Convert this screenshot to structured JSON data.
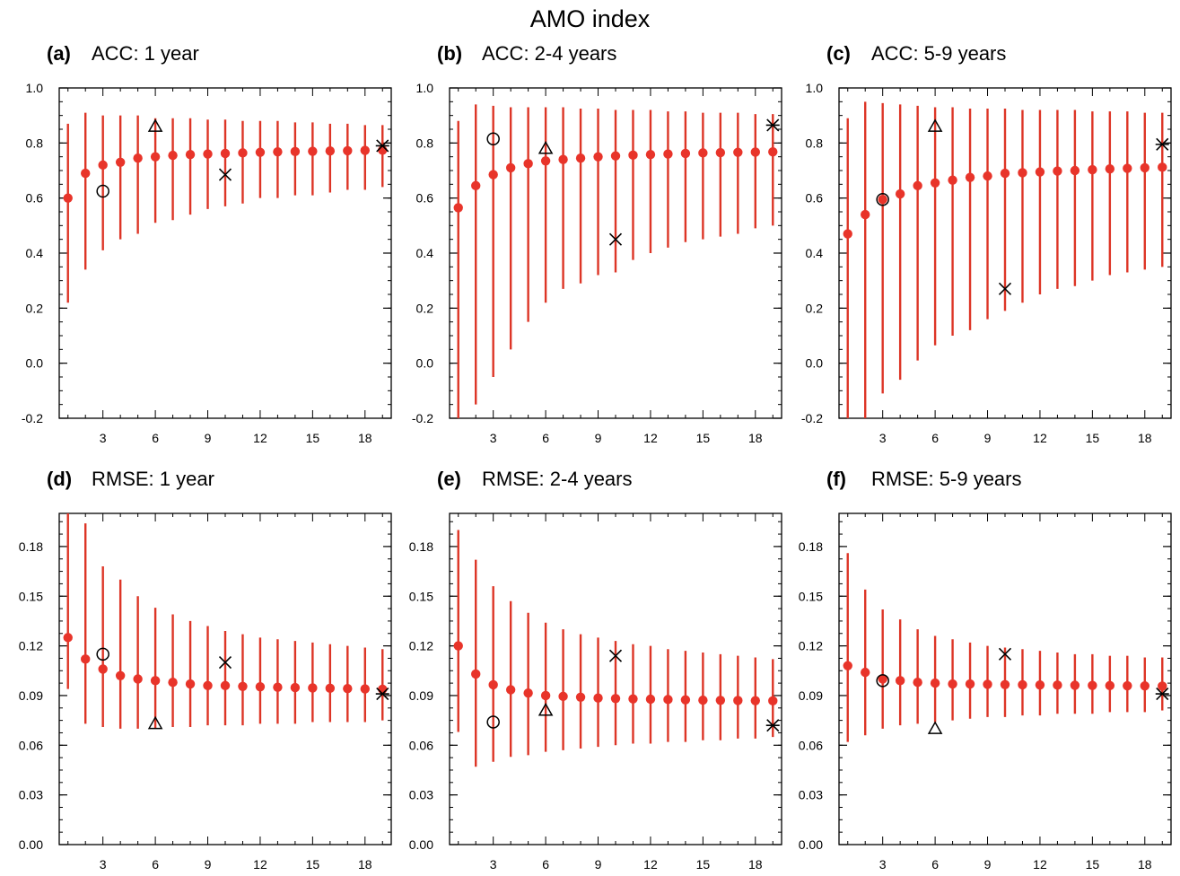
{
  "figure": {
    "title": "AMO index"
  },
  "style": {
    "dot_color": "#e8342a",
    "bar_color": "#dd3526",
    "marker_color": "#000000"
  },
  "chart_data": [
    {
      "type": "scatter",
      "letter": "(a)",
      "title": "ACC: 1 year",
      "xlim": [
        0.5,
        19.5
      ],
      "xticks": [
        3,
        6,
        9,
        12,
        15,
        18
      ],
      "ylim": [
        -0.2,
        1.0
      ],
      "yticks": [
        -0.2,
        0.0,
        0.2,
        0.4,
        0.6,
        0.8,
        1.0
      ],
      "ytick_labels": [
        "-0.2",
        "0.0",
        "0.2",
        "0.4",
        "0.6",
        "0.8",
        "1.0"
      ],
      "grid": false,
      "x": [
        1,
        2,
        3,
        4,
        5,
        6,
        7,
        8,
        9,
        10,
        11,
        12,
        13,
        14,
        15,
        16,
        17,
        18,
        19
      ],
      "mean": [
        0.6,
        0.69,
        0.72,
        0.73,
        0.745,
        0.75,
        0.755,
        0.758,
        0.76,
        0.762,
        0.764,
        0.766,
        0.768,
        0.769,
        0.77,
        0.771,
        0.772,
        0.773,
        0.774
      ],
      "low": [
        0.22,
        0.34,
        0.41,
        0.45,
        0.47,
        0.51,
        0.52,
        0.54,
        0.56,
        0.57,
        0.58,
        0.6,
        0.6,
        0.61,
        0.61,
        0.62,
        0.63,
        0.63,
        0.64
      ],
      "high": [
        0.87,
        0.91,
        0.9,
        0.9,
        0.9,
        0.89,
        0.89,
        0.89,
        0.885,
        0.885,
        0.88,
        0.88,
        0.88,
        0.875,
        0.875,
        0.87,
        0.87,
        0.865,
        0.865
      ],
      "markers": [
        {
          "symbol": "circle",
          "x": 3,
          "y": 0.625
        },
        {
          "symbol": "triangle",
          "x": 6,
          "y": 0.86
        },
        {
          "symbol": "cross",
          "x": 10,
          "y": 0.685
        },
        {
          "symbol": "asterisk",
          "x": 19,
          "y": 0.79
        }
      ]
    },
    {
      "type": "scatter",
      "letter": "(b)",
      "title": "ACC: 2-4 years",
      "xlim": [
        0.5,
        19.5
      ],
      "xticks": [
        3,
        6,
        9,
        12,
        15,
        18
      ],
      "ylim": [
        -0.2,
        1.0
      ],
      "yticks": [
        -0.2,
        0.0,
        0.2,
        0.4,
        0.6,
        0.8,
        1.0
      ],
      "ytick_labels": [
        "-0.2",
        "0.0",
        "0.2",
        "0.4",
        "0.6",
        "0.8",
        "1.0"
      ],
      "grid": false,
      "x": [
        1,
        2,
        3,
        4,
        5,
        6,
        7,
        8,
        9,
        10,
        11,
        12,
        13,
        14,
        15,
        16,
        17,
        18,
        19
      ],
      "mean": [
        0.565,
        0.645,
        0.685,
        0.71,
        0.725,
        0.735,
        0.74,
        0.745,
        0.75,
        0.753,
        0.756,
        0.758,
        0.76,
        0.762,
        0.764,
        0.765,
        0.766,
        0.767,
        0.768
      ],
      "low": [
        -0.2,
        -0.15,
        -0.05,
        0.05,
        0.15,
        0.22,
        0.27,
        0.29,
        0.32,
        0.33,
        0.375,
        0.4,
        0.42,
        0.44,
        0.45,
        0.46,
        0.47,
        0.49,
        0.5
      ],
      "high": [
        0.88,
        0.94,
        0.935,
        0.93,
        0.93,
        0.93,
        0.93,
        0.925,
        0.925,
        0.92,
        0.92,
        0.92,
        0.915,
        0.915,
        0.91,
        0.91,
        0.91,
        0.905,
        0.905
      ],
      "markers": [
        {
          "symbol": "circle",
          "x": 3,
          "y": 0.815
        },
        {
          "symbol": "triangle",
          "x": 6,
          "y": 0.78
        },
        {
          "symbol": "cross",
          "x": 10,
          "y": 0.45
        },
        {
          "symbol": "asterisk",
          "x": 19,
          "y": 0.865
        }
      ]
    },
    {
      "type": "scatter",
      "letter": "(c)",
      "title": "ACC: 5-9 years",
      "xlim": [
        0.5,
        19.5
      ],
      "xticks": [
        3,
        6,
        9,
        12,
        15,
        18
      ],
      "ylim": [
        -0.2,
        1.0
      ],
      "yticks": [
        -0.2,
        0.0,
        0.2,
        0.4,
        0.6,
        0.8,
        1.0
      ],
      "ytick_labels": [
        "-0.2",
        "0.0",
        "0.2",
        "0.4",
        "0.6",
        "0.8",
        "1.0"
      ],
      "grid": false,
      "x": [
        1,
        2,
        3,
        4,
        5,
        6,
        7,
        8,
        9,
        10,
        11,
        12,
        13,
        14,
        15,
        16,
        17,
        18,
        19
      ],
      "mean": [
        0.47,
        0.54,
        0.595,
        0.615,
        0.645,
        0.655,
        0.665,
        0.675,
        0.68,
        0.69,
        0.692,
        0.695,
        0.698,
        0.7,
        0.703,
        0.706,
        0.708,
        0.71,
        0.712
      ],
      "low": [
        -0.2,
        -0.2,
        -0.11,
        -0.06,
        0.01,
        0.065,
        0.1,
        0.12,
        0.16,
        0.19,
        0.22,
        0.25,
        0.27,
        0.28,
        0.3,
        0.32,
        0.33,
        0.34,
        0.35
      ],
      "high": [
        0.89,
        0.95,
        0.945,
        0.94,
        0.935,
        0.93,
        0.93,
        0.925,
        0.925,
        0.925,
        0.92,
        0.92,
        0.92,
        0.92,
        0.915,
        0.915,
        0.915,
        0.91,
        0.91
      ],
      "markers": [
        {
          "symbol": "circle",
          "x": 3,
          "y": 0.595
        },
        {
          "symbol": "triangle",
          "x": 6,
          "y": 0.86
        },
        {
          "symbol": "cross",
          "x": 10,
          "y": 0.27
        },
        {
          "symbol": "asterisk",
          "x": 19,
          "y": 0.795
        }
      ]
    },
    {
      "type": "scatter",
      "letter": "(d)",
      "title": "RMSE: 1 year",
      "xlim": [
        0.5,
        19.5
      ],
      "xticks": [
        3,
        6,
        9,
        12,
        15,
        18
      ],
      "ylim": [
        0.0,
        0.2
      ],
      "yticks": [
        0.0,
        0.03,
        0.06,
        0.09,
        0.12,
        0.15,
        0.18
      ],
      "ytick_labels": [
        "0.00",
        "0.03",
        "0.06",
        "0.09",
        "0.12",
        "0.15",
        "0.18"
      ],
      "grid": false,
      "x": [
        1,
        2,
        3,
        4,
        5,
        6,
        7,
        8,
        9,
        10,
        11,
        12,
        13,
        14,
        15,
        16,
        17,
        18,
        19
      ],
      "mean": [
        0.125,
        0.112,
        0.106,
        0.102,
        0.1,
        0.099,
        0.098,
        0.097,
        0.096,
        0.096,
        0.0955,
        0.0953,
        0.095,
        0.0948,
        0.0946,
        0.0944,
        0.0942,
        0.094,
        0.0938
      ],
      "low": [
        0.094,
        0.073,
        0.071,
        0.07,
        0.07,
        0.07,
        0.071,
        0.071,
        0.072,
        0.072,
        0.072,
        0.073,
        0.073,
        0.073,
        0.074,
        0.074,
        0.074,
        0.074,
        0.075
      ],
      "high": [
        0.2,
        0.194,
        0.168,
        0.16,
        0.15,
        0.143,
        0.139,
        0.135,
        0.132,
        0.129,
        0.127,
        0.125,
        0.124,
        0.123,
        0.122,
        0.121,
        0.12,
        0.119,
        0.118
      ],
      "markers": [
        {
          "symbol": "circle",
          "x": 3,
          "y": 0.115
        },
        {
          "symbol": "triangle",
          "x": 6,
          "y": 0.073
        },
        {
          "symbol": "cross",
          "x": 10,
          "y": 0.11
        },
        {
          "symbol": "asterisk",
          "x": 19,
          "y": 0.091
        }
      ]
    },
    {
      "type": "scatter",
      "letter": "(e)",
      "title": "RMSE: 2-4 years",
      "xlim": [
        0.5,
        19.5
      ],
      "xticks": [
        3,
        6,
        9,
        12,
        15,
        18
      ],
      "ylim": [
        0.0,
        0.2
      ],
      "yticks": [
        0.0,
        0.03,
        0.06,
        0.09,
        0.12,
        0.15,
        0.18
      ],
      "ytick_labels": [
        "0.00",
        "0.03",
        "0.06",
        "0.09",
        "0.12",
        "0.15",
        "0.18"
      ],
      "grid": false,
      "x": [
        1,
        2,
        3,
        4,
        5,
        6,
        7,
        8,
        9,
        10,
        11,
        12,
        13,
        14,
        15,
        16,
        17,
        18,
        19
      ],
      "mean": [
        0.12,
        0.103,
        0.0965,
        0.0935,
        0.0915,
        0.09,
        0.0895,
        0.089,
        0.0885,
        0.0882,
        0.088,
        0.0878,
        0.0876,
        0.0874,
        0.0872,
        0.0871,
        0.087,
        0.0869,
        0.0868
      ],
      "low": [
        0.068,
        0.047,
        0.05,
        0.053,
        0.054,
        0.056,
        0.057,
        0.058,
        0.059,
        0.06,
        0.061,
        0.061,
        0.062,
        0.062,
        0.063,
        0.063,
        0.064,
        0.064,
        0.065
      ],
      "high": [
        0.19,
        0.172,
        0.156,
        0.147,
        0.14,
        0.134,
        0.13,
        0.127,
        0.125,
        0.123,
        0.121,
        0.12,
        0.118,
        0.117,
        0.116,
        0.115,
        0.114,
        0.113,
        0.112
      ],
      "markers": [
        {
          "symbol": "circle",
          "x": 3,
          "y": 0.074
        },
        {
          "symbol": "triangle",
          "x": 6,
          "y": 0.081
        },
        {
          "symbol": "cross",
          "x": 10,
          "y": 0.114
        },
        {
          "symbol": "asterisk",
          "x": 19,
          "y": 0.072
        }
      ]
    },
    {
      "type": "scatter",
      "letter": "(f)",
      "title": "RMSE: 5-9 years",
      "xlim": [
        0.5,
        19.5
      ],
      "xticks": [
        3,
        6,
        9,
        12,
        15,
        18
      ],
      "ylim": [
        0.0,
        0.2
      ],
      "yticks": [
        0.0,
        0.03,
        0.06,
        0.09,
        0.12,
        0.15,
        0.18
      ],
      "ytick_labels": [
        "0.00",
        "0.03",
        "0.06",
        "0.09",
        "0.12",
        "0.15",
        "0.18"
      ],
      "grid": false,
      "x": [
        1,
        2,
        3,
        4,
        5,
        6,
        7,
        8,
        9,
        10,
        11,
        12,
        13,
        14,
        15,
        16,
        17,
        18,
        19
      ],
      "mean": [
        0.108,
        0.104,
        0.1,
        0.099,
        0.098,
        0.0975,
        0.097,
        0.097,
        0.0968,
        0.0966,
        0.0965,
        0.0964,
        0.0963,
        0.0962,
        0.0961,
        0.096,
        0.0959,
        0.0958,
        0.0957
      ],
      "low": [
        0.062,
        0.066,
        0.07,
        0.072,
        0.073,
        0.074,
        0.075,
        0.076,
        0.077,
        0.077,
        0.078,
        0.078,
        0.079,
        0.079,
        0.079,
        0.08,
        0.08,
        0.08,
        0.081
      ],
      "high": [
        0.176,
        0.154,
        0.142,
        0.136,
        0.13,
        0.126,
        0.124,
        0.122,
        0.12,
        0.119,
        0.118,
        0.117,
        0.116,
        0.115,
        0.115,
        0.114,
        0.114,
        0.113,
        0.113
      ],
      "markers": [
        {
          "symbol": "circle",
          "x": 3,
          "y": 0.099
        },
        {
          "symbol": "triangle",
          "x": 6,
          "y": 0.07
        },
        {
          "symbol": "cross",
          "x": 10,
          "y": 0.115
        },
        {
          "symbol": "asterisk",
          "x": 19,
          "y": 0.091
        }
      ]
    }
  ]
}
